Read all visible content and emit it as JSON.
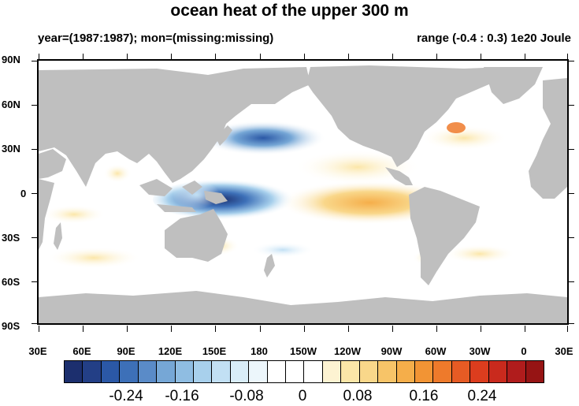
{
  "title": "ocean heat of the upper 300 m",
  "subtitle_left": "year=(1987:1987); mon=(missing:missing)",
  "subtitle_right": "range (-0.4 : 0.3) 1e20 Joule",
  "lat_labels": [
    "90N",
    "60N",
    "30N",
    "0",
    "30S",
    "60S",
    "90S"
  ],
  "lon_labels": [
    "30E",
    "60E",
    "90E",
    "120E",
    "150E",
    "180",
    "150W",
    "120W",
    "90W",
    "60W",
    "30W",
    "0",
    "30E"
  ],
  "colorbar": {
    "labels": [
      "-0.24",
      "-0.16",
      "-0.08",
      "0",
      "0.08",
      "0.16",
      "0.24"
    ],
    "colors": [
      "#1c2f6e",
      "#233f86",
      "#2b58a6",
      "#3d70b8",
      "#5a8bc8",
      "#76a7d6",
      "#8fbde2",
      "#a8d0ec",
      "#c2e0f4",
      "#d9edf8",
      "#ecf6fb",
      "#ffffff",
      "#ffffff",
      "#ffffff",
      "#fdf3d2",
      "#fbe6a8",
      "#f9d78a",
      "#f7c468",
      "#f5ae4a",
      "#f29434",
      "#ee7a2b",
      "#e65b24",
      "#dc3d1e",
      "#c92a1d",
      "#b01c1c",
      "#961414"
    ]
  },
  "land_color": "#bfbfbf",
  "ocean_color": "#ffffff"
}
